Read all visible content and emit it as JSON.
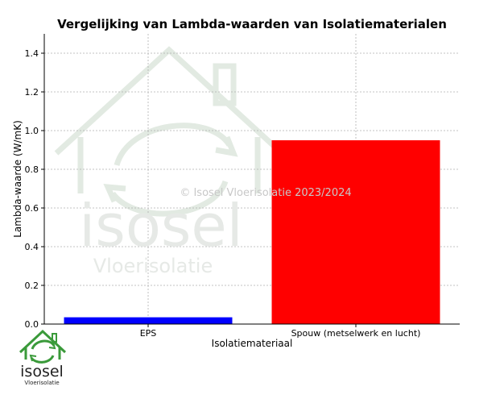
{
  "chart_data": {
    "type": "bar",
    "title": "Vergelijking van Lambda-waarden van Isolatiematerialen",
    "xlabel": "Isolatiemateriaal",
    "ylabel": "Lambda-waarde (W/mK)",
    "categories": [
      "EPS",
      "Spouw (metselwerk en lucht)"
    ],
    "values": [
      0.035,
      0.95
    ],
    "colors": [
      "#0000ff",
      "#ff0000"
    ],
    "ylim": [
      0,
      1.5
    ],
    "yticks": [
      0.0,
      0.2,
      0.4,
      0.6,
      0.8,
      1.0,
      1.2,
      1.4
    ],
    "ytick_labels": [
      "0.0",
      "0.2",
      "0.4",
      "0.6",
      "0.8",
      "1.0",
      "1.2",
      "1.4"
    ],
    "grid": true,
    "legend": false
  },
  "watermark": {
    "copyright": "© Isosel Vloerisolatie 2023/2024",
    "brand": "isosel",
    "tagline": "Vloerisolatie"
  },
  "logo": {
    "brand": "isosel",
    "tagline": "Vloerisolatie",
    "color": "#3a9a3a"
  }
}
